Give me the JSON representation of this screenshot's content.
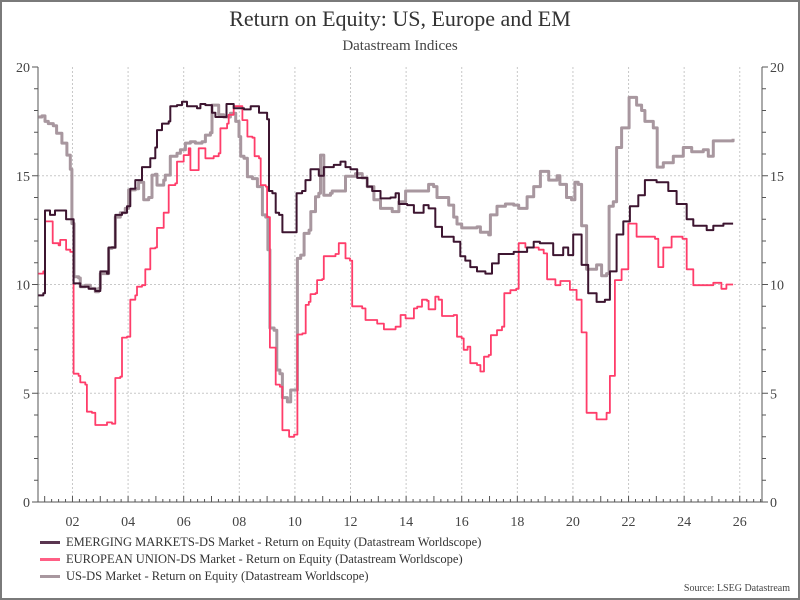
{
  "chart_data": {
    "type": "line",
    "title": "Return on Equity: US, Europe and EM",
    "subtitle": "Datastream Indices",
    "xlabel": "",
    "ylabel": "",
    "xlim": [
      2000.76,
      2026.8
    ],
    "ylim": [
      0,
      20
    ],
    "y_ticks": [
      "0",
      "5",
      "10",
      "15",
      "20"
    ],
    "y_tick_values": [
      0,
      5,
      10,
      15,
      20
    ],
    "x_ticks": [
      "02",
      "04",
      "06",
      "08",
      "10",
      "12",
      "14",
      "16",
      "18",
      "20",
      "22",
      "24",
      "26"
    ],
    "x_tick_values": [
      2002,
      2004,
      2006,
      2008,
      2010,
      2012,
      2014,
      2016,
      2018,
      2020,
      2022,
      2024,
      2026
    ],
    "grid": true,
    "legend_position": "bottom-left",
    "source": "Source: LSEG Datastream",
    "series": [
      {
        "name": "EMERGING MARKETS-DS Market - Return on Equity (Datastream Worldscope)",
        "color": "#3d1530",
        "x": [
          2000.77,
          2000.95,
          2001.01,
          2001.19,
          2001.37,
          2001.74,
          2001.77,
          2001.94,
          2002.04,
          2002.28,
          2002.58,
          2002.82,
          2003.0,
          2003.24,
          2003.3,
          2003.42,
          2003.54,
          2003.78,
          2003.96,
          2004.08,
          2004.26,
          2004.5,
          2004.8,
          2004.98,
          2005.04,
          2005.22,
          2005.46,
          2005.52,
          2005.76,
          2005.94,
          2006.12,
          2006.48,
          2006.6,
          2006.78,
          2007.02,
          2007.14,
          2007.5,
          2007.54,
          2007.8,
          2008.17,
          2008.41,
          2008.71,
          2009.0,
          2009.07,
          2009.19,
          2009.31,
          2009.43,
          2009.55,
          2009.96,
          2010.06,
          2010.26,
          2010.38,
          2010.56,
          2010.74,
          2010.86,
          2011.04,
          2011.4,
          2011.64,
          2011.82,
          2012.0,
          2012.24,
          2012.6,
          2012.78,
          2013.08,
          2013.44,
          2013.62,
          2013.74,
          2014.04,
          2014.28,
          2014.63,
          2014.81,
          2015.05,
          2015.29,
          2015.71,
          2015.95,
          2016.13,
          2016.31,
          2016.55,
          2016.85,
          2017.09,
          2017.33,
          2017.87,
          2018.35,
          2018.59,
          2018.81,
          2019.29,
          2019.65,
          2019.83,
          2020.01,
          2020.31,
          2020.55,
          2020.85,
          2021.15,
          2021.33,
          2021.57,
          2021.81,
          2022.05,
          2022.35,
          2022.59,
          2023.01,
          2023.43,
          2023.73,
          2024.09,
          2024.33,
          2024.81,
          2025.05,
          2025.41,
          2025.76
        ],
        "values": [
          9.5,
          9.6,
          13.4,
          13.2,
          13.4,
          13.4,
          13.0,
          13.0,
          10.05,
          9.9,
          9.8,
          9.7,
          10.6,
          10.5,
          11.7,
          11.7,
          13.2,
          13.3,
          13.6,
          14.4,
          14.8,
          15.4,
          15.8,
          16.3,
          17.1,
          17.4,
          17.5,
          18.2,
          18.25,
          18.4,
          18.2,
          18.1,
          18.3,
          18.25,
          17.9,
          17.7,
          17.7,
          18.3,
          18.1,
          18.05,
          18.2,
          17.9,
          17.6,
          14.3,
          14.2,
          13.3,
          13.2,
          12.4,
          12.4,
          14.2,
          14.3,
          14.8,
          15.3,
          15.3,
          15.0,
          15.4,
          15.5,
          15.65,
          15.4,
          15.3,
          14.9,
          14.5,
          14.3,
          13.96,
          14.0,
          14.2,
          13.7,
          13.65,
          13.3,
          13.65,
          13.5,
          12.65,
          12.2,
          11.97,
          11.3,
          11.1,
          10.8,
          10.6,
          10.5,
          10.97,
          11.4,
          11.5,
          11.7,
          11.97,
          11.9,
          11.35,
          11.7,
          11.35,
          12.3,
          10.9,
          9.6,
          9.2,
          9.3,
          10.6,
          12.3,
          12.9,
          13.6,
          14.1,
          14.8,
          14.7,
          14.3,
          13.7,
          13.0,
          12.7,
          12.5,
          12.7,
          12.8,
          12.8
        ]
      },
      {
        "name": "EUROPEAN UNION-DS Market - Return on Equity (Datastream Worldscope)",
        "color": "#ff3d6a",
        "x": [
          2000.77,
          2000.95,
          2001.01,
          2001.19,
          2001.29,
          2001.5,
          2001.56,
          2001.74,
          2001.77,
          2001.92,
          2002.04,
          2002.22,
          2002.28,
          2002.46,
          2002.52,
          2002.7,
          2002.82,
          2003.24,
          2003.42,
          2003.54,
          2003.72,
          2003.78,
          2003.96,
          2004.08,
          2004.26,
          2004.32,
          2004.5,
          2004.62,
          2004.74,
          2004.8,
          2004.98,
          2005.04,
          2005.28,
          2005.46,
          2005.7,
          2005.76,
          2006.0,
          2006.18,
          2006.24,
          2006.42,
          2006.54,
          2006.72,
          2006.78,
          2007.08,
          2007.26,
          2007.32,
          2007.56,
          2007.62,
          2007.8,
          2007.99,
          2008.11,
          2008.29,
          2008.47,
          2008.55,
          2008.71,
          2008.77,
          2008.95,
          2009.0,
          2009.1,
          2009.25,
          2009.31,
          2009.46,
          2009.55,
          2009.79,
          2009.97,
          2010.09,
          2010.27,
          2010.39,
          2010.5,
          2010.56,
          2010.74,
          2010.8,
          2010.98,
          2011.04,
          2011.46,
          2011.58,
          2011.7,
          2011.82,
          2011.98,
          2012.06,
          2012.42,
          2012.54,
          2012.96,
          2013.2,
          2013.62,
          2013.8,
          2013.98,
          2014.1,
          2014.28,
          2014.4,
          2014.57,
          2014.75,
          2014.81,
          2014.97,
          2015.05,
          2015.17,
          2015.29,
          2015.71,
          2015.83,
          2016.0,
          2016.07,
          2016.21,
          2016.31,
          2016.55,
          2016.67,
          2016.8,
          2016.97,
          2017.05,
          2017.27,
          2017.45,
          2017.53,
          2017.75,
          2017.96,
          2018.05,
          2018.23,
          2018.29,
          2018.77,
          2018.95,
          2019.07,
          2019.37,
          2019.55,
          2019.89,
          2020.13,
          2020.31,
          2020.49,
          2020.85,
          2021.21,
          2021.33,
          2021.51,
          2021.75,
          2021.99,
          2022.29,
          2022.95,
          2023.07,
          2023.25,
          2023.55,
          2023.94,
          2024.09,
          2024.33,
          2025.05,
          2025.34,
          2025.52,
          2025.76
        ],
        "values": [
          10.5,
          10.6,
          12.9,
          12.9,
          11.9,
          11.8,
          12.05,
          12.05,
          11.6,
          11.5,
          5.9,
          5.8,
          5.5,
          5.4,
          4.15,
          4.1,
          3.54,
          3.66,
          3.6,
          5.7,
          5.76,
          7.56,
          7.6,
          9.3,
          9.5,
          9.9,
          9.97,
          10.7,
          10.7,
          11.66,
          11.7,
          12.6,
          13.3,
          14.57,
          14.65,
          15.65,
          15.95,
          16.26,
          15.26,
          15.26,
          16.26,
          16.26,
          15.8,
          15.9,
          16.03,
          17.18,
          17.4,
          17.8,
          18.2,
          18.2,
          17.56,
          16.8,
          16.75,
          15.9,
          15.8,
          14.57,
          14.5,
          13.1,
          7.1,
          7.1,
          5.4,
          5.3,
          3.3,
          3.0,
          3.1,
          7.7,
          7.75,
          9.06,
          9.2,
          9.56,
          9.6,
          10.2,
          10.25,
          11.3,
          11.4,
          11.9,
          11.9,
          11.2,
          11.1,
          9.0,
          8.9,
          8.37,
          8.2,
          7.94,
          8.06,
          8.6,
          8.44,
          8.44,
          8.9,
          8.98,
          9.3,
          9.25,
          8.86,
          8.86,
          9.44,
          9.3,
          8.55,
          8.6,
          7.6,
          7.52,
          7.0,
          7.14,
          6.38,
          6.3,
          6.0,
          6.68,
          6.76,
          7.67,
          7.9,
          8.06,
          9.6,
          9.74,
          9.8,
          11.9,
          11.9,
          11.7,
          11.6,
          11.43,
          10.24,
          9.97,
          10.16,
          9.75,
          9.3,
          7.8,
          4.1,
          3.8,
          4.1,
          5.8,
          10.2,
          10.7,
          12.8,
          12.2,
          12.1,
          10.8,
          11.7,
          12.2,
          12.1,
          10.7,
          9.97,
          10.08,
          9.8,
          10.0,
          10.0
        ]
      },
      {
        "name": "US-DS Market - Return on Equity (Datastream Worldscope)",
        "color": "#a8979f",
        "x": [
          2000.77,
          2000.9,
          2001.01,
          2001.13,
          2001.31,
          2001.43,
          2001.62,
          2001.8,
          2001.92,
          2001.98,
          2002.06,
          2002.22,
          2002.28,
          2002.46,
          2002.64,
          2002.82,
          2002.94,
          2003.0,
          2003.24,
          2003.3,
          2003.42,
          2003.54,
          2003.72,
          2003.9,
          2004.02,
          2004.26,
          2004.38,
          2004.56,
          2004.74,
          2004.86,
          2004.98,
          2005.04,
          2005.28,
          2005.34,
          2005.46,
          2005.52,
          2005.76,
          2005.88,
          2006.06,
          2006.24,
          2006.42,
          2006.66,
          2006.78,
          2006.96,
          2007.02,
          2007.2,
          2007.26,
          2007.44,
          2007.68,
          2007.87,
          2007.99,
          2008.05,
          2008.17,
          2008.29,
          2008.47,
          2008.65,
          2008.83,
          2008.95,
          2009.03,
          2009.1,
          2009.25,
          2009.35,
          2009.46,
          2009.55,
          2009.73,
          2009.85,
          2009.97,
          2010.09,
          2010.21,
          2010.33,
          2010.51,
          2010.57,
          2010.74,
          2010.86,
          2010.92,
          2010.98,
          2011.04,
          2011.28,
          2011.34,
          2011.7,
          2011.82,
          2012.06,
          2012.18,
          2012.42,
          2012.6,
          2012.84,
          2013.08,
          2013.5,
          2013.74,
          2013.98,
          2014.63,
          2014.81,
          2014.99,
          2015.11,
          2015.53,
          2015.71,
          2015.83,
          2016.0,
          2016.55,
          2016.67,
          2016.97,
          2017.03,
          2017.27,
          2017.57,
          2017.87,
          2018.05,
          2018.35,
          2018.59,
          2018.83,
          2019.0,
          2019.13,
          2019.43,
          2019.53,
          2019.77,
          2019.95,
          2020.07,
          2020.19,
          2020.31,
          2020.49,
          2020.85,
          2021.03,
          2021.21,
          2021.3,
          2021.45,
          2021.57,
          2021.75,
          2021.95,
          2022.02,
          2022.29,
          2022.47,
          2022.59,
          2022.89,
          2023.03,
          2023.25,
          2023.61,
          2023.97,
          2024.27,
          2024.69,
          2024.87,
          2025.05,
          2025.52,
          2025.76
        ],
        "values": [
          17.7,
          17.75,
          17.5,
          17.4,
          17.3,
          16.95,
          16.5,
          15.95,
          15.3,
          12.8,
          10.36,
          10.3,
          9.9,
          9.97,
          9.82,
          9.67,
          9.82,
          10.5,
          10.5,
          11.66,
          11.7,
          13.1,
          13.3,
          13.5,
          14.35,
          14.4,
          14.7,
          13.9,
          14.0,
          15.03,
          15.07,
          14.57,
          14.8,
          15.03,
          15.03,
          15.9,
          16.03,
          16.2,
          16.5,
          16.56,
          16.5,
          16.56,
          16.87,
          16.98,
          18.25,
          18.25,
          17.8,
          17.7,
          17.87,
          17.5,
          16.8,
          15.9,
          15.8,
          14.95,
          14.87,
          14.5,
          13.2,
          13.1,
          11.6,
          8.0,
          7.9,
          6.07,
          5.9,
          4.8,
          4.6,
          5.15,
          5.15,
          11.2,
          11.35,
          12.35,
          12.5,
          13.35,
          14.03,
          14.2,
          15.95,
          15.95,
          14.1,
          14.2,
          14.3,
          14.3,
          14.98,
          14.98,
          15.1,
          14.9,
          14.5,
          13.9,
          13.5,
          13.35,
          13.8,
          14.3,
          14.3,
          14.6,
          14.5,
          14.0,
          13.65,
          13.1,
          12.78,
          12.6,
          12.65,
          12.4,
          12.28,
          13.2,
          13.6,
          13.7,
          13.65,
          13.5,
          14.03,
          14.5,
          15.2,
          15.2,
          14.8,
          15.0,
          14.6,
          14.0,
          13.9,
          14.7,
          14.6,
          12.7,
          10.7,
          10.9,
          10.4,
          10.5,
          13.6,
          13.8,
          16.3,
          17.2,
          17.2,
          18.6,
          18.25,
          18.0,
          17.5,
          17.2,
          15.4,
          15.6,
          15.9,
          16.3,
          16.1,
          16.2,
          15.9,
          16.6,
          16.6,
          16.7
        ]
      }
    ]
  }
}
